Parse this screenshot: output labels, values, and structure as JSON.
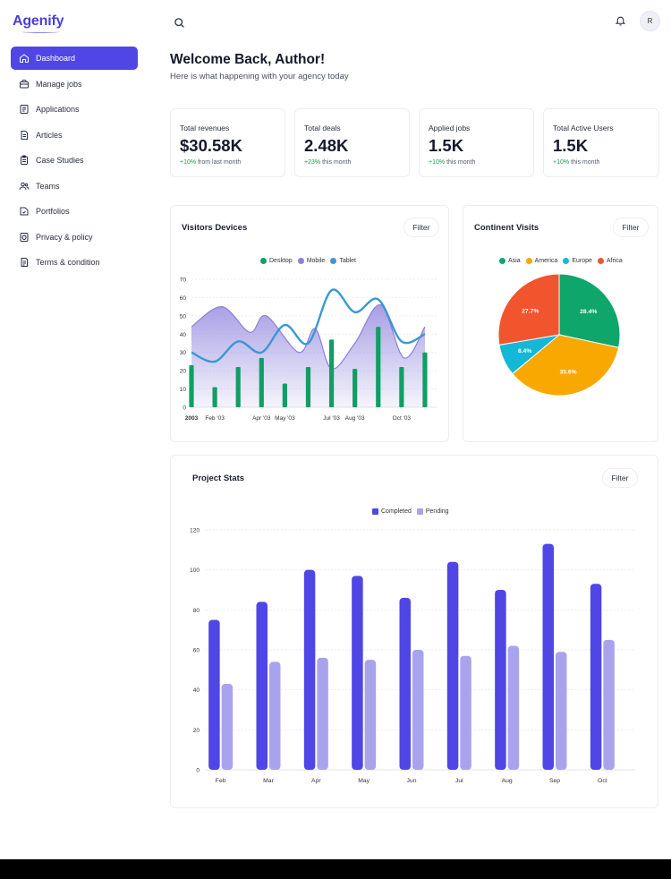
{
  "app": {
    "logo": "Agenify"
  },
  "sidebar": {
    "items": [
      {
        "label": "Dashboard",
        "icon": "home-icon",
        "active": true
      },
      {
        "label": "Manage jobs",
        "icon": "briefcase-icon",
        "active": false
      },
      {
        "label": "Applications",
        "icon": "document-icon",
        "active": false
      },
      {
        "label": "Articles",
        "icon": "article-icon",
        "active": false
      },
      {
        "label": "Case Studies",
        "icon": "clipboard-icon",
        "active": false
      },
      {
        "label": "Teams",
        "icon": "users-icon",
        "active": false
      },
      {
        "label": "Portfolios",
        "icon": "portfolio-icon",
        "active": false
      },
      {
        "label": "Privacy & policy",
        "icon": "shield-doc-icon",
        "active": false
      },
      {
        "label": "Terms & condition",
        "icon": "terms-icon",
        "active": false
      }
    ]
  },
  "header": {
    "avatar_initial": "R"
  },
  "welcome": {
    "title": "Welcome Back, Author!",
    "subtitle": "Here is what happening with your agency today"
  },
  "stats": [
    {
      "label": "Total revenues",
      "value": "$30.58K",
      "change": "+10%",
      "period": "from last month"
    },
    {
      "label": "Total deals",
      "value": "2.48K",
      "change": "+23%",
      "period": "this month"
    },
    {
      "label": "Applied jobs",
      "value": "1.5K",
      "change": "+10%",
      "period": "this month"
    },
    {
      "label": "Total Active Users",
      "value": "1.5K",
      "change": "+10%",
      "period": "this month"
    }
  ],
  "filter_label": "Filter",
  "colors": {
    "accent": "#4f46e5",
    "desktop": "#0f9f64",
    "mobile": "#8b7fdc",
    "tablet": "#3b97d3",
    "asia": "#0ea66b",
    "america": "#f8a800",
    "europe": "#14b8d6",
    "africa": "#f2542d",
    "completed": "#4f46e5",
    "pending": "#a9a3ee",
    "positive": "#16a34a"
  },
  "visitors": {
    "title": "Visitors Devices",
    "chart_data": {
      "type": "line",
      "legend": [
        "Desktop",
        "Mobile",
        "Tablet"
      ],
      "ylim": [
        0,
        70
      ],
      "yticks": [
        0,
        10,
        20,
        30,
        40,
        50,
        60,
        70
      ],
      "xticks": [
        {
          "label": "2003",
          "x": 0,
          "bold": true
        },
        {
          "label": "Feb '03",
          "x": 1
        },
        {
          "label": "Apr '03",
          "x": 3
        },
        {
          "label": "May '03",
          "x": 4
        },
        {
          "label": "Jul '03",
          "x": 6
        },
        {
          "label": "Aug '03",
          "x": 7
        },
        {
          "label": "Oct '03",
          "x": 9
        }
      ],
      "x_max": 10.5,
      "series": [
        {
          "name": "Desktop",
          "type": "bar",
          "x": [
            0,
            1,
            2,
            3,
            4,
            5,
            6,
            7,
            8,
            9,
            10
          ],
          "values": [
            23,
            11,
            22,
            27,
            13,
            22,
            37,
            21,
            44,
            22,
            30
          ]
        },
        {
          "name": "Mobile",
          "type": "area",
          "x": [
            0,
            1.3,
            2.5,
            3.2,
            4.6,
            5.3,
            6,
            7,
            8.1,
            9.1,
            10
          ],
          "values": [
            44,
            55,
            41,
            50,
            30,
            43,
            21,
            35,
            56,
            27,
            44
          ]
        },
        {
          "name": "Tablet",
          "type": "line",
          "x": [
            0,
            1,
            2,
            3,
            4,
            5,
            6,
            7,
            8,
            9,
            10
          ],
          "values": [
            30,
            25,
            36,
            30,
            45,
            35,
            64,
            52,
            59,
            36,
            40
          ]
        }
      ]
    }
  },
  "continent": {
    "title": "Continent Visits",
    "chart_data": {
      "type": "pie",
      "legend": [
        "Asia",
        "America",
        "Europe",
        "Africa"
      ],
      "slices": [
        {
          "name": "Asia",
          "value": 28.4,
          "label": "28.4%"
        },
        {
          "name": "America",
          "value": 35.6,
          "label": "35.6%"
        },
        {
          "name": "Europe",
          "value": 8.4,
          "label": "8.4%"
        },
        {
          "name": "Africa",
          "value": 27.7,
          "label": "27.7%"
        }
      ]
    }
  },
  "project": {
    "title": "Project Stats",
    "chart_data": {
      "type": "bar",
      "legend": [
        "Completed",
        "Pending"
      ],
      "categories": [
        "Feb",
        "Mar",
        "Apr",
        "May",
        "Jun",
        "Jul",
        "Aug",
        "Sep",
        "Oct"
      ],
      "ylim": [
        0,
        120
      ],
      "yticks": [
        0,
        20,
        40,
        60,
        80,
        100,
        120
      ],
      "series": [
        {
          "name": "Completed",
          "values": [
            75,
            84,
            100,
            97,
            86,
            104,
            90,
            113,
            93
          ]
        },
        {
          "name": "Pending",
          "values": [
            43,
            54,
            56,
            55,
            60,
            57,
            62,
            59,
            65
          ]
        }
      ]
    }
  }
}
